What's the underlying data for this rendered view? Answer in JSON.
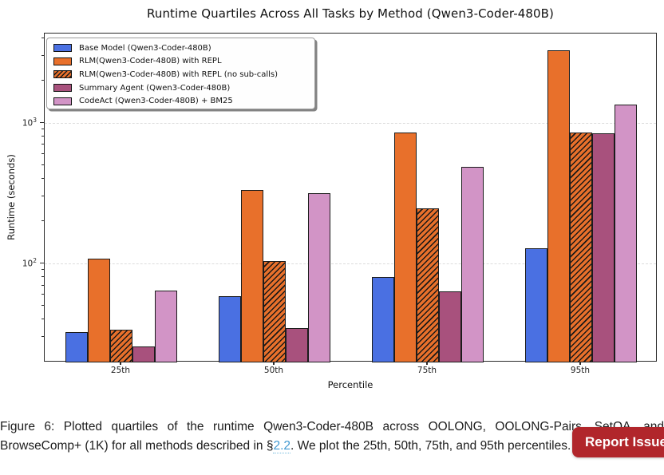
{
  "chart": {
    "title": "Runtime Quartiles Across All Tasks by Method (Qwen3-Coder-480B)",
    "xlabel": "Percentile",
    "ylabel": "Runtime (seconds)"
  },
  "chart_data": {
    "type": "bar",
    "title": "Runtime Quartiles Across All Tasks by Method (Qwen3-Coder-480B)",
    "xlabel": "Percentile",
    "ylabel": "Runtime (seconds)",
    "yscale": "log",
    "ylim": [
      20,
      4350
    ],
    "grid": "horizontal dashed at major ticks",
    "legend_position": "upper left",
    "categories": [
      "25th",
      "50th",
      "75th",
      "95th"
    ],
    "ytick_values": [
      100,
      1000
    ],
    "ytick_labels": [
      "10²",
      "10³"
    ],
    "y_minor_ticks": [
      30,
      40,
      50,
      60,
      70,
      80,
      90,
      200,
      300,
      400,
      500,
      600,
      700,
      800,
      900,
      2000,
      3000,
      4000
    ],
    "series": [
      {
        "name": "Base Model (Qwen3-Coder-480B)",
        "color": "#4a70e2",
        "hatch": false,
        "values": [
          33,
          59,
          81,
          129
        ]
      },
      {
        "name": "RLM(Qwen3-Coder-480B) with REPL",
        "color": "#e8702b",
        "hatch": false,
        "values": [
          110,
          335,
          860,
          3300
        ]
      },
      {
        "name": "RLM(Qwen3-Coder-480B) with REPL (no sub-calls)",
        "color": "#e8702b",
        "hatch": true,
        "values": [
          34,
          105,
          250,
          860
        ]
      },
      {
        "name": "Summary Agent (Qwen3-Coder-480B)",
        "color": "#a8517d",
        "hatch": false,
        "values": [
          26,
          35,
          64,
          845
        ]
      },
      {
        "name": "CodeAct (Qwen3-Coder-480B) + BM25",
        "color": "#d294c6",
        "hatch": false,
        "values": [
          65,
          320,
          490,
          1360
        ]
      }
    ]
  },
  "caption": {
    "line1": "Figure 6: Plotted quartiles of the runtime Qwen3-Coder-480B across OOLONG, OOLONG-Pairs, SetQA, and",
    "line2_pre": "BrowseComp+ (1K) for all methods described in §",
    "link_text": "2.2",
    "line2_post": ". We plot the 25th, 50th, 75th, and 95th percentiles.",
    "link_color": "#4199d1"
  },
  "report_button": {
    "label": "Report Issue",
    "color": "#b1262b"
  }
}
